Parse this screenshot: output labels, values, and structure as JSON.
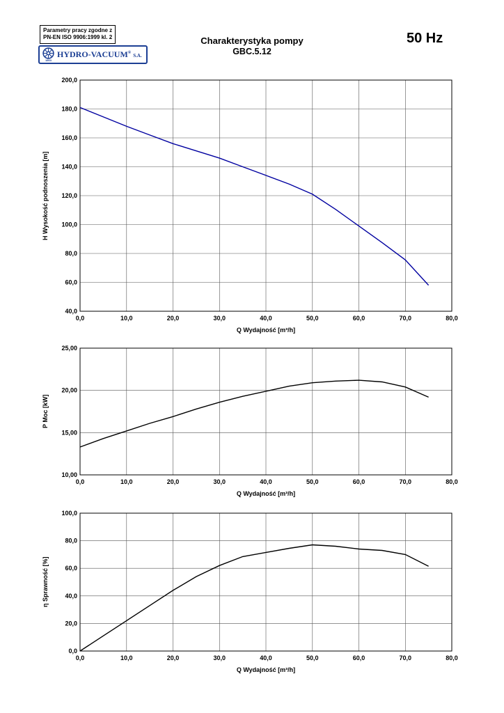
{
  "header": {
    "params_line1": "Parametry pracy zgodne z",
    "params_line2": "PN-EN ISO 9906:1999 kl. 2",
    "logo": {
      "icon": "wheel-emblem-icon",
      "text": "HYDRO-VACUUM",
      "reg": "®",
      "suffix": "S.A.",
      "year": "1863",
      "color": "#1c3f94"
    },
    "title_line1": "Charakterystyka pompy",
    "title_line2": "GBC.5.12",
    "frequency": "50 Hz"
  },
  "chart_data": [
    {
      "type": "line",
      "name": "head-curve",
      "title": "",
      "xlabel": "Q Wydajność [m³/h]",
      "ylabel": "H Wysokość podnoszenia [m]",
      "xlim": [
        0,
        80
      ],
      "ylim": [
        40,
        200
      ],
      "xticks": [
        0,
        10,
        20,
        30,
        40,
        50,
        60,
        70,
        80
      ],
      "xtick_labels": [
        "0,0",
        "10,0",
        "20,0",
        "30,0",
        "40,0",
        "50,0",
        "60,0",
        "70,0",
        "80,0"
      ],
      "yticks": [
        40,
        60,
        80,
        100,
        120,
        140,
        160,
        180,
        200
      ],
      "ytick_labels": [
        "40,0",
        "60,0",
        "80,0",
        "100,0",
        "120,0",
        "140,0",
        "160,0",
        "180,0",
        "200,0"
      ],
      "grid": true,
      "legend": "none",
      "line_color": "#0000a0",
      "x": [
        0,
        5,
        10,
        15,
        20,
        25,
        30,
        35,
        40,
        45,
        50,
        55,
        60,
        65,
        70,
        75
      ],
      "y": [
        181,
        174.5,
        168,
        162,
        156,
        151,
        146,
        140,
        134,
        128,
        121,
        110.5,
        99,
        87.5,
        75.5,
        58
      ]
    },
    {
      "type": "line",
      "name": "power-curve",
      "title": "",
      "xlabel": "Q Wydajność [m³/h]",
      "ylabel": "P Moc [kW]",
      "xlim": [
        0,
        80
      ],
      "ylim": [
        10,
        25
      ],
      "xticks": [
        0,
        10,
        20,
        30,
        40,
        50,
        60,
        70,
        80
      ],
      "xtick_labels": [
        "0,0",
        "10,0",
        "20,0",
        "30,0",
        "40,0",
        "50,0",
        "60,0",
        "70,0",
        "80,0"
      ],
      "yticks": [
        10,
        15,
        20,
        25
      ],
      "ytick_labels": [
        "10,00",
        "15,00",
        "20,00",
        "25,00"
      ],
      "grid": true,
      "legend": "none",
      "line_color": "#000000",
      "x": [
        0,
        5,
        10,
        15,
        20,
        25,
        30,
        35,
        40,
        45,
        50,
        55,
        60,
        65,
        70,
        75
      ],
      "y": [
        13.3,
        14.3,
        15.2,
        16.1,
        16.9,
        17.8,
        18.6,
        19.3,
        19.9,
        20.5,
        20.9,
        21.1,
        21.2,
        21.0,
        20.4,
        19.2
      ]
    },
    {
      "type": "line",
      "name": "efficiency-curve",
      "title": "",
      "xlabel": "Q Wydajność [m³/h]",
      "ylabel": "η Sprawność [%]",
      "xlim": [
        0,
        80
      ],
      "ylim": [
        0,
        100
      ],
      "xticks": [
        0,
        10,
        20,
        30,
        40,
        50,
        60,
        70,
        80
      ],
      "xtick_labels": [
        "0,0",
        "10,0",
        "20,0",
        "30,0",
        "40,0",
        "50,0",
        "60,0",
        "70,0",
        "80,0"
      ],
      "yticks": [
        0,
        20,
        40,
        60,
        80,
        100
      ],
      "ytick_labels": [
        "0,0",
        "20,0",
        "40,0",
        "60,0",
        "80,0",
        "100,0"
      ],
      "grid": true,
      "legend": "none",
      "line_color": "#000000",
      "x": [
        0,
        5,
        10,
        15,
        20,
        25,
        30,
        35,
        40,
        45,
        50,
        55,
        60,
        65,
        70,
        75
      ],
      "y": [
        0,
        11,
        22,
        33,
        44,
        54,
        62,
        68.5,
        71.5,
        74.5,
        77,
        76,
        74,
        73,
        70,
        61.5
      ]
    }
  ]
}
